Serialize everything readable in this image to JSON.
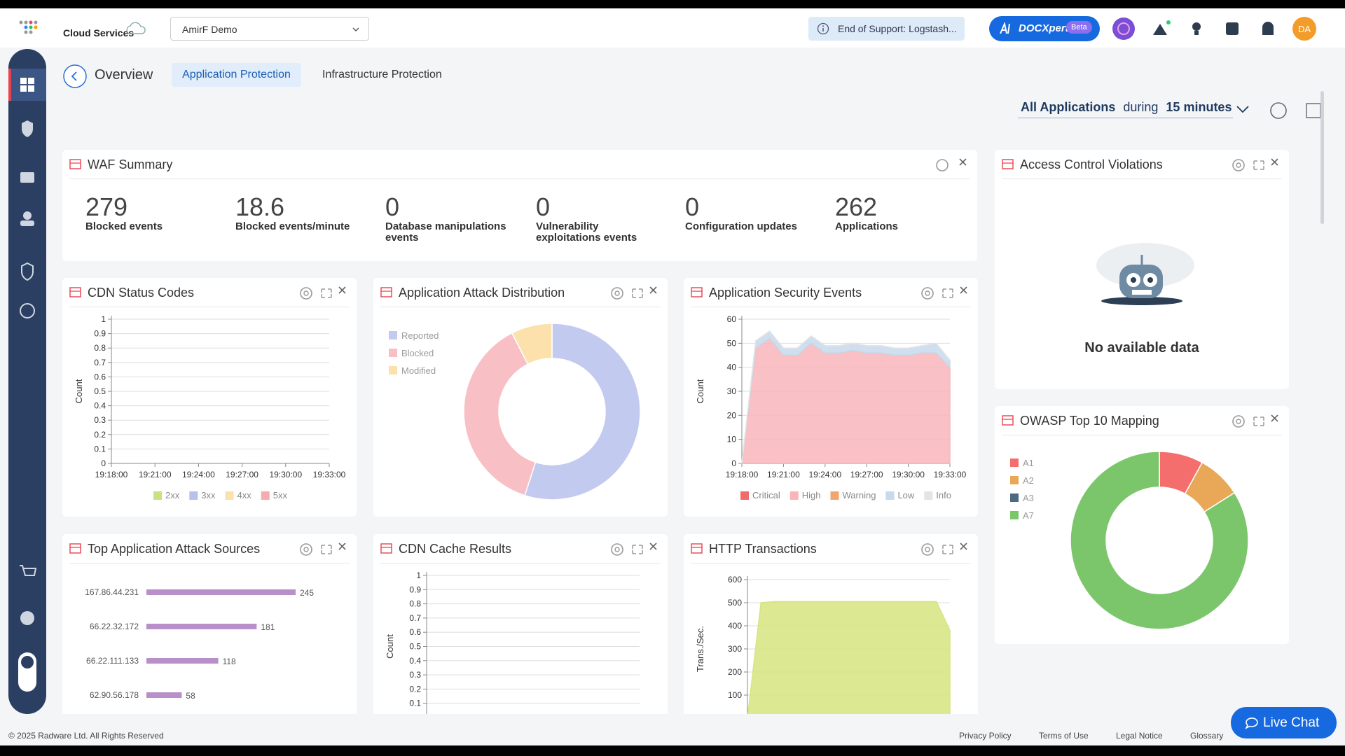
{
  "header": {
    "brand": "Cloud Services",
    "account": "AmirF Demo",
    "notice": "End of Support: Logstash...",
    "assistant": "DOCXpert",
    "assistant_badge": "Beta",
    "avatar": "DA"
  },
  "nav": {
    "back_label": "Overview",
    "tabs": [
      "Application Protection",
      "Infrastructure Protection"
    ]
  },
  "filter": {
    "scope": "All Applications",
    "connector": "during",
    "period": "15 minutes"
  },
  "waf_summary": {
    "title": "WAF Summary",
    "stats": [
      {
        "value": 279,
        "label": "Blocked events"
      },
      {
        "value": 18.6,
        "label": "Blocked events/minute"
      },
      {
        "value": 0,
        "label": "Database manipulations events"
      },
      {
        "value": 0,
        "label": "Vulnerability exploitations events"
      },
      {
        "value": 0,
        "label": "Configuration updates"
      },
      {
        "value": 262,
        "label": "Applications"
      }
    ]
  },
  "access_control": {
    "title": "Access Control Violations",
    "message": "No available data"
  },
  "chart_data": [
    {
      "type": "line",
      "title": "CDN Status Codes",
      "y_label": "Count",
      "ylim": [
        0,
        1
      ],
      "yticks": [
        0,
        0.1,
        0.2,
        0.3,
        0.4,
        0.5,
        0.6,
        0.7,
        0.8,
        0.9,
        1
      ],
      "categories": [
        "19:18:00",
        "19:21:00",
        "19:24:00",
        "19:27:00",
        "19:30:00",
        "19:33:00"
      ],
      "series": [
        {
          "name": "2xx",
          "color": "#c9e27f",
          "values": [
            null,
            null,
            null,
            null,
            null,
            null
          ]
        },
        {
          "name": "3xx",
          "color": "#b7c1f0",
          "values": [
            null,
            null,
            null,
            null,
            null,
            null
          ]
        },
        {
          "name": "4xx",
          "color": "#fde0ab",
          "values": [
            null,
            null,
            null,
            null,
            null,
            null
          ]
        },
        {
          "name": "5xx",
          "color": "#f7aab2",
          "values": [
            null,
            null,
            null,
            null,
            null,
            null
          ]
        }
      ]
    },
    {
      "type": "pie",
      "title": "Application Attack Distribution",
      "categories": [
        "Reported",
        "Blocked",
        "Modified"
      ],
      "values": [
        55,
        37.5,
        7.5
      ],
      "colors": [
        "#c3caf0",
        "#f8c0c5",
        "#fde1ad"
      ]
    },
    {
      "type": "area",
      "title": "Application Security Events",
      "y_label": "Count",
      "ylim": [
        0,
        60
      ],
      "yticks": [
        0,
        10,
        20,
        30,
        40,
        50,
        60
      ],
      "categories": [
        "19:18:00",
        null,
        null,
        "19:21:00",
        null,
        null,
        "19:24:00",
        null,
        null,
        "19:27:00",
        null,
        null,
        "19:30:00",
        null,
        null,
        "19:33:00"
      ],
      "series": [
        {
          "name": "Critical",
          "color": "#f06b6b",
          "values": [
            0,
            0,
            0,
            0,
            0,
            0,
            0,
            0,
            0,
            0,
            0,
            0,
            0,
            0,
            0,
            0
          ]
        },
        {
          "name": "High",
          "color": "#f8b5bb",
          "values": [
            0,
            48,
            52,
            45,
            45,
            50,
            46,
            46,
            47,
            46,
            46,
            45,
            45,
            46,
            46,
            40
          ]
        },
        {
          "name": "Warning",
          "color": "#f3a56e",
          "values": [
            0,
            0,
            0,
            0,
            0,
            0,
            0,
            0,
            0,
            0,
            0,
            0,
            0,
            0,
            0,
            0
          ]
        },
        {
          "name": "Low",
          "color": "#c7d9ec",
          "values": [
            0,
            3,
            3,
            3,
            3,
            3,
            3,
            3,
            3,
            3,
            3,
            3,
            3,
            3,
            4,
            3
          ]
        },
        {
          "name": "Info",
          "color": "#e4e4e4",
          "values": [
            0,
            0,
            0,
            0,
            0,
            0,
            0,
            0,
            0,
            0,
            0,
            0,
            0,
            0,
            0,
            0
          ]
        }
      ]
    },
    {
      "type": "hbar",
      "title": "Top Application Attack Sources",
      "categories": [
        "167.86.44.231",
        "66.22.32.172",
        "66.22.111.133",
        "62.90.56.178"
      ],
      "values": [
        245,
        181,
        118,
        58
      ],
      "color": "#b98fc9"
    },
    {
      "type": "line",
      "title": "CDN Cache Results",
      "y_label": "Count",
      "ylim": [
        0,
        1
      ],
      "yticks": [
        0.1,
        0.2,
        0.3,
        0.4,
        0.5,
        0.6,
        0.7,
        0.8,
        0.9,
        1
      ],
      "series": []
    },
    {
      "type": "area",
      "title": "HTTP Transactions",
      "y_label": "Trans./Sec.",
      "ylim": [
        0,
        600
      ],
      "yticks": [
        100,
        200,
        300,
        400,
        500,
        600
      ],
      "series": [
        {
          "color": "#d6e57f",
          "values": [
            0,
            500,
            505,
            505,
            505,
            505,
            505,
            505,
            505,
            505,
            505,
            505,
            505,
            505,
            505,
            380
          ]
        }
      ]
    },
    {
      "type": "pie",
      "title": "OWASP Top 10 Mapping",
      "categories": [
        "A1",
        "A2",
        "A3",
        "A7"
      ],
      "values": [
        8,
        8,
        0,
        84
      ],
      "colors": [
        "#f56e6e",
        "#e8a857",
        "#4a6b82",
        "#7bc66b"
      ]
    }
  ],
  "footer": {
    "copyright": "© 2025 Radware Ltd. All Rights Reserved",
    "links": [
      "Privacy Policy",
      "Terms of Use",
      "Legal Notice",
      "Glossary"
    ],
    "chat": "Live Chat"
  }
}
